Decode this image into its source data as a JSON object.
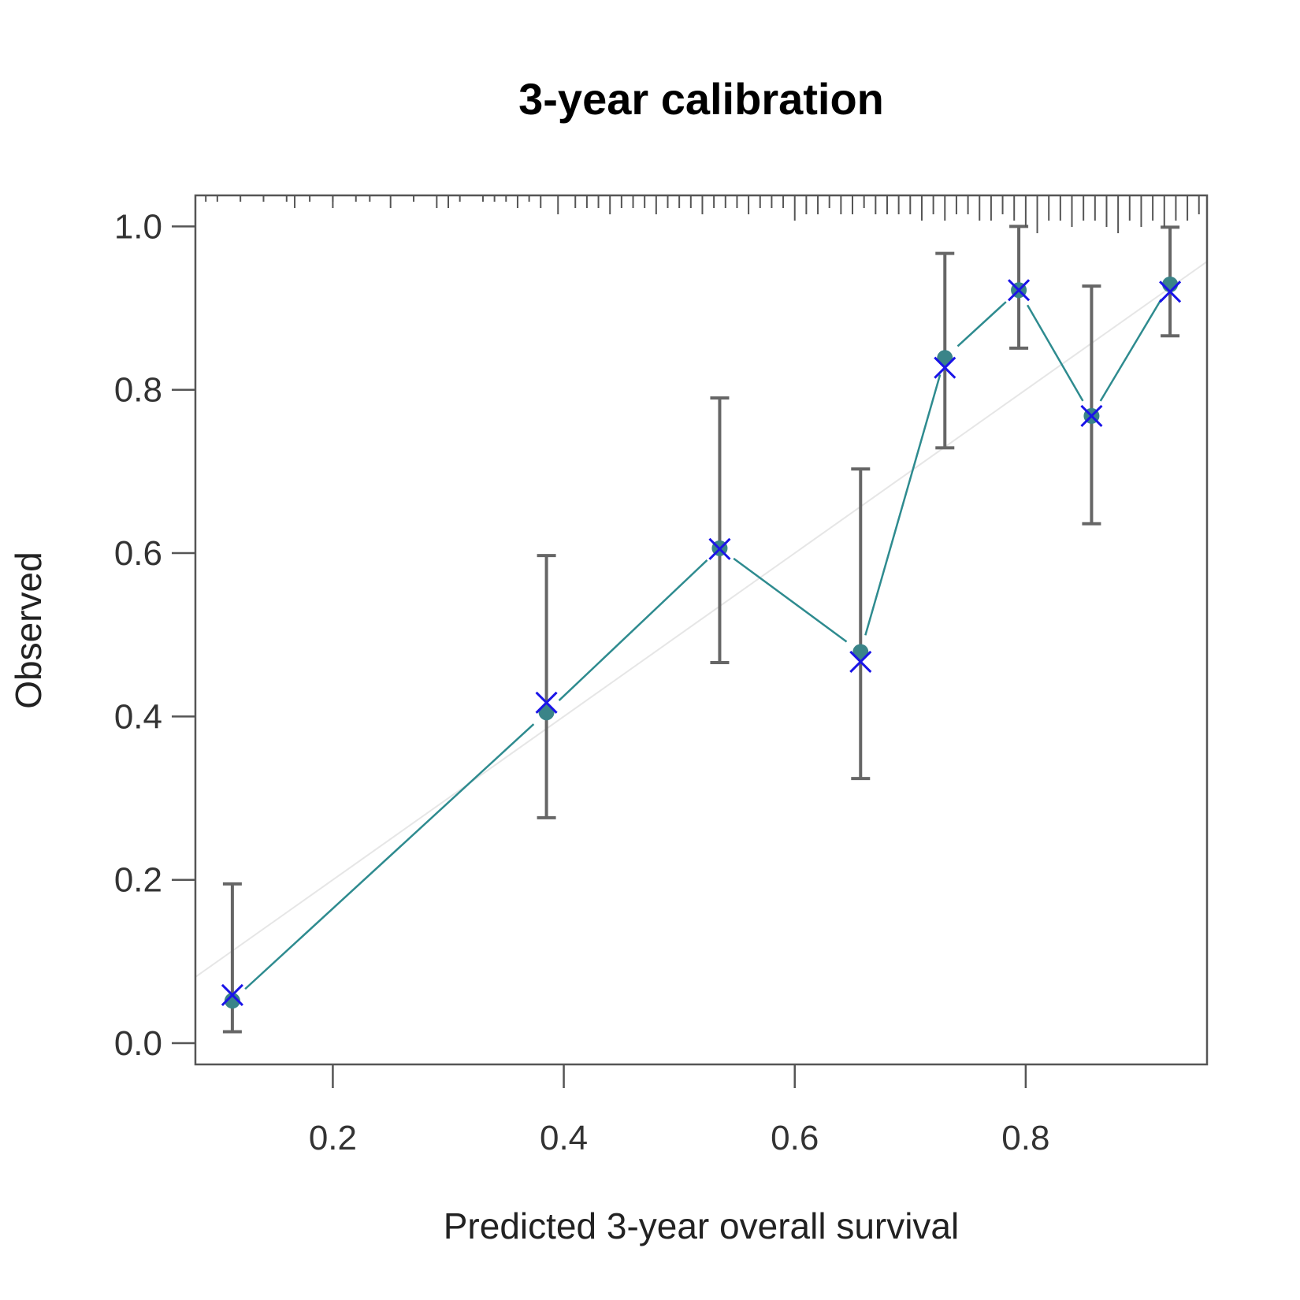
{
  "chart_data": {
    "type": "scatter",
    "title": "3-year calibration",
    "xlabel": "Predicted 3-year overall survival",
    "ylabel": "Observed",
    "xlim": [
      0.081,
      0.957
    ],
    "ylim": [
      -0.026,
      1.038
    ],
    "x_ticks": [
      "0.2",
      "0.4",
      "0.6",
      "0.8"
    ],
    "y_ticks": [
      "0.0",
      "0.2",
      "0.4",
      "0.6",
      "0.8",
      "1.0"
    ],
    "grid": false,
    "legend": "none",
    "points": [
      {
        "x": 0.113,
        "y": 0.052,
        "y_corrected": 0.059,
        "lower": 0.014,
        "upper": 0.195
      },
      {
        "x": 0.385,
        "y": 0.405,
        "y_corrected": 0.417,
        "lower": 0.276,
        "upper": 0.597
      },
      {
        "x": 0.535,
        "y": 0.606,
        "y_corrected": 0.605,
        "lower": 0.466,
        "upper": 0.79
      },
      {
        "x": 0.657,
        "y": 0.479,
        "y_corrected": 0.467,
        "lower": 0.324,
        "upper": 0.703
      },
      {
        "x": 0.73,
        "y": 0.839,
        "y_corrected": 0.827,
        "lower": 0.729,
        "upper": 0.967
      },
      {
        "x": 0.794,
        "y": 0.922,
        "y_corrected": 0.922,
        "lower": 0.851,
        "upper": 1.0
      },
      {
        "x": 0.857,
        "y": 0.768,
        "y_corrected": 0.768,
        "lower": 0.636,
        "upper": 0.927
      },
      {
        "x": 0.925,
        "y": 0.929,
        "y_corrected": 0.92,
        "lower": 0.866,
        "upper": 0.999
      }
    ],
    "reference_line": {
      "from": [
        0.081,
        0.081
      ],
      "to": [
        0.957,
        0.957
      ]
    },
    "rug_x": [
      0.09,
      0.1,
      0.12,
      0.14,
      0.16,
      0.167,
      0.18,
      0.2,
      0.2,
      0.22,
      0.232,
      0.25,
      0.27,
      0.29,
      0.3,
      0.3,
      0.31,
      0.33,
      0.34,
      0.35,
      0.36,
      0.37,
      0.38,
      0.395,
      0.41,
      0.42,
      0.43,
      0.44,
      0.45,
      0.46,
      0.47,
      0.48,
      0.49,
      0.5,
      0.51,
      0.52,
      0.53,
      0.54,
      0.55,
      0.56,
      0.57,
      0.58,
      0.59,
      0.6,
      0.61,
      0.62,
      0.63,
      0.64,
      0.65,
      0.66,
      0.67,
      0.68,
      0.69,
      0.7,
      0.71,
      0.72,
      0.73,
      0.74,
      0.75,
      0.76,
      0.77,
      0.78,
      0.79,
      0.8,
      0.81,
      0.82,
      0.83,
      0.84,
      0.85,
      0.86,
      0.87,
      0.88,
      0.89,
      0.9,
      0.91,
      0.92,
      0.93,
      0.94,
      0.95
    ],
    "rug_heights": [
      1,
      1,
      1,
      1,
      1,
      2,
      1,
      1,
      2,
      1,
      1,
      2,
      1,
      2,
      1,
      2,
      1,
      1,
      1,
      1,
      2,
      1,
      2,
      3,
      2,
      2,
      2,
      3,
      2,
      2,
      2,
      3,
      2,
      2,
      2,
      3,
      2,
      2,
      2,
      3,
      2,
      2,
      2,
      4,
      3,
      3,
      2,
      3,
      3,
      2,
      3,
      3,
      3,
      3,
      4,
      3,
      4,
      3,
      3,
      4,
      4,
      3,
      4,
      5,
      6,
      4,
      4,
      5,
      4,
      4,
      5,
      6,
      4,
      5,
      4,
      5,
      4,
      4,
      3
    ],
    "colors": {
      "axis": "#555555",
      "errorbar": "#666666",
      "line": "#2e8b8f",
      "point": "#3a8488",
      "cross": "#1a14e8",
      "reference": "#e6e6e6"
    }
  }
}
